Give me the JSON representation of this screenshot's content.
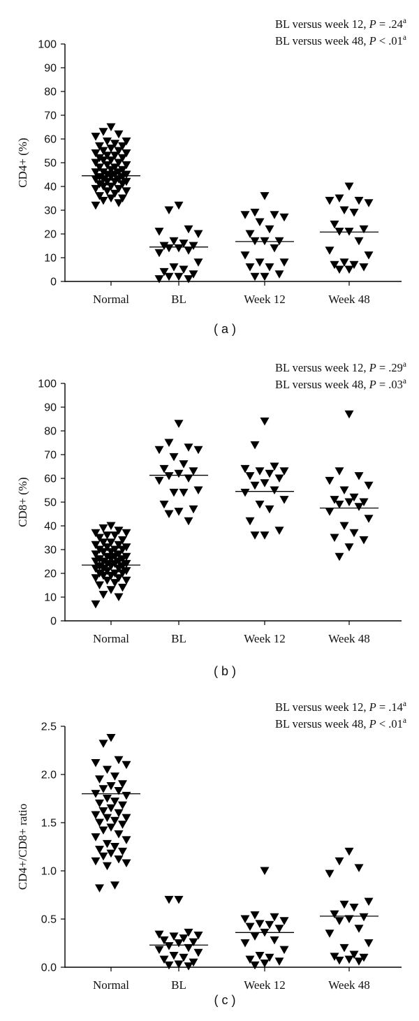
{
  "chart_data": [
    {
      "type": "scatter",
      "panel_label": "( a )",
      "ylabel": "CD4+ (%)",
      "ylim": [
        0,
        100
      ],
      "yticks": [
        "0",
        "10",
        "20",
        "30",
        "40",
        "50",
        "60",
        "70",
        "80",
        "90",
        "100"
      ],
      "yticks_values": [
        0,
        10,
        20,
        30,
        40,
        50,
        60,
        70,
        80,
        90,
        100
      ],
      "categories": [
        "Normal",
        "BL",
        "Week 12",
        "Week 48"
      ],
      "annotations": [
        {
          "prefix": "BL versus week 12, ",
          "p_label": "P",
          "relation": " = .24",
          "sup": "a"
        },
        {
          "prefix": "BL versus week 48, ",
          "p_label": "P",
          "relation": " < .01",
          "sup": "a"
        }
      ],
      "medians": [
        44.5,
        14.5,
        16.8,
        20.8
      ],
      "series": [
        {
          "name": "Normal",
          "values": [
            65,
            63,
            62,
            61,
            59,
            59,
            58,
            57,
            57,
            56,
            55,
            55,
            54,
            54,
            53,
            53,
            52,
            52,
            51,
            51,
            50,
            50,
            49,
            49,
            48,
            48,
            47,
            47,
            46,
            46,
            46,
            45,
            45,
            45,
            44,
            44,
            44,
            43,
            43,
            43,
            42,
            42,
            42,
            41,
            41,
            40,
            40,
            39,
            39,
            38,
            38,
            37,
            36,
            35,
            35,
            34,
            33,
            32
          ]
        },
        {
          "name": "BL",
          "values": [
            32,
            30,
            22,
            21,
            20,
            17,
            16,
            15,
            15,
            14,
            14,
            13,
            12,
            8,
            6,
            5,
            4,
            3,
            2,
            2,
            1,
            1
          ]
        },
        {
          "name": "Week 12",
          "values": [
            36,
            29,
            28,
            28,
            27,
            25,
            22,
            20,
            17,
            17,
            17,
            14,
            11,
            8,
            8,
            6,
            6,
            3,
            2,
            2
          ]
        },
        {
          "name": "Week 48",
          "values": [
            40,
            35,
            34,
            34,
            33,
            30,
            29,
            24,
            22,
            21,
            21,
            17,
            13,
            11,
            8,
            7,
            7,
            6,
            5,
            5
          ]
        }
      ]
    },
    {
      "type": "scatter",
      "panel_label": "( b )",
      "ylabel": "CD8+ (%)",
      "ylim": [
        0,
        100
      ],
      "yticks": [
        "0",
        "10",
        "20",
        "30",
        "40",
        "50",
        "60",
        "70",
        "80",
        "90",
        "100"
      ],
      "yticks_values": [
        0,
        10,
        20,
        30,
        40,
        50,
        60,
        70,
        80,
        90,
        100
      ],
      "categories": [
        "Normal",
        "BL",
        "Week 12",
        "Week 48"
      ],
      "annotations": [
        {
          "prefix": "BL versus week 12, ",
          "p_label": "P",
          "relation": " = .29",
          "sup": "a"
        },
        {
          "prefix": "BL versus week 48, ",
          "p_label": "P",
          "relation": " = .03",
          "sup": "a"
        }
      ],
      "medians": [
        23.5,
        61.3,
        54.5,
        47.5
      ],
      "series": [
        {
          "name": "Normal",
          "values": [
            40,
            39,
            38,
            37,
            37,
            36,
            36,
            35,
            34,
            33,
            33,
            32,
            32,
            31,
            31,
            30,
            30,
            30,
            29,
            29,
            28,
            28,
            27,
            27,
            27,
            26,
            26,
            26,
            25,
            25,
            25,
            24,
            24,
            24,
            23,
            23,
            23,
            22,
            22,
            22,
            21,
            21,
            20,
            20,
            20,
            19,
            19,
            18,
            18,
            17,
            17,
            16,
            15,
            14,
            13,
            11,
            10,
            7
          ]
        },
        {
          "name": "BL",
          "values": [
            83,
            75,
            73,
            72,
            72,
            69,
            66,
            64,
            63,
            62,
            61,
            60,
            59,
            55,
            54,
            54,
            49,
            47,
            46,
            45,
            42
          ]
        },
        {
          "name": "Week 12",
          "values": [
            84,
            74,
            65,
            64,
            63,
            63,
            62,
            61,
            60,
            58,
            57,
            55,
            54,
            51,
            49,
            47,
            42,
            38,
            36,
            36
          ]
        },
        {
          "name": "Week 48",
          "values": [
            87,
            63,
            61,
            59,
            57,
            55,
            52,
            51,
            50,
            50,
            49,
            48,
            46,
            43,
            40,
            37,
            35,
            34,
            31,
            27
          ]
        }
      ]
    },
    {
      "type": "scatter",
      "panel_label": "( c )",
      "ylabel": "CD4+/CD8+ ratio",
      "ylim": [
        0,
        2.5
      ],
      "yticks": [
        "0.0",
        "0.5",
        "1.0",
        "1.5",
        "2.0",
        "2.5"
      ],
      "yticks_values": [
        0,
        0.5,
        1.0,
        1.5,
        2.0,
        2.5
      ],
      "categories": [
        "Normal",
        "BL",
        "Week 12",
        "Week 48"
      ],
      "annotations": [
        {
          "prefix": "BL versus week 12, ",
          "p_label": "P",
          "relation": " = .14",
          "sup": "a"
        },
        {
          "prefix": "BL versus week 48, ",
          "p_label": "P",
          "relation": " < .01",
          "sup": "a"
        }
      ],
      "medians": [
        1.8,
        0.23,
        0.36,
        0.53
      ],
      "series": [
        {
          "name": "Normal",
          "values": [
            2.38,
            2.32,
            2.15,
            2.12,
            2.1,
            2.05,
            1.98,
            1.95,
            1.9,
            1.88,
            1.85,
            1.83,
            1.8,
            1.78,
            1.75,
            1.72,
            1.7,
            1.68,
            1.65,
            1.62,
            1.6,
            1.58,
            1.55,
            1.55,
            1.52,
            1.5,
            1.48,
            1.45,
            1.42,
            1.38,
            1.35,
            1.32,
            1.28,
            1.25,
            1.22,
            1.2,
            1.18,
            1.15,
            1.12,
            1.1,
            1.08,
            1.05,
            0.85,
            0.82
          ]
        },
        {
          "name": "BL",
          "values": [
            0.7,
            0.7,
            0.36,
            0.34,
            0.33,
            0.32,
            0.3,
            0.28,
            0.26,
            0.25,
            0.22,
            0.2,
            0.18,
            0.15,
            0.12,
            0.1,
            0.08,
            0.05,
            0.03,
            0.02,
            0.01
          ]
        },
        {
          "name": "Week 12",
          "values": [
            1.0,
            0.54,
            0.52,
            0.5,
            0.48,
            0.45,
            0.44,
            0.42,
            0.4,
            0.36,
            0.32,
            0.28,
            0.25,
            0.18,
            0.12,
            0.1,
            0.08,
            0.06,
            0.04,
            0.02
          ]
        },
        {
          "name": "Week 48",
          "values": [
            1.2,
            1.1,
            1.03,
            0.97,
            0.68,
            0.65,
            0.62,
            0.55,
            0.52,
            0.5,
            0.48,
            0.4,
            0.35,
            0.25,
            0.2,
            0.13,
            0.11,
            0.1,
            0.08,
            0.07,
            0.06
          ]
        }
      ]
    }
  ]
}
